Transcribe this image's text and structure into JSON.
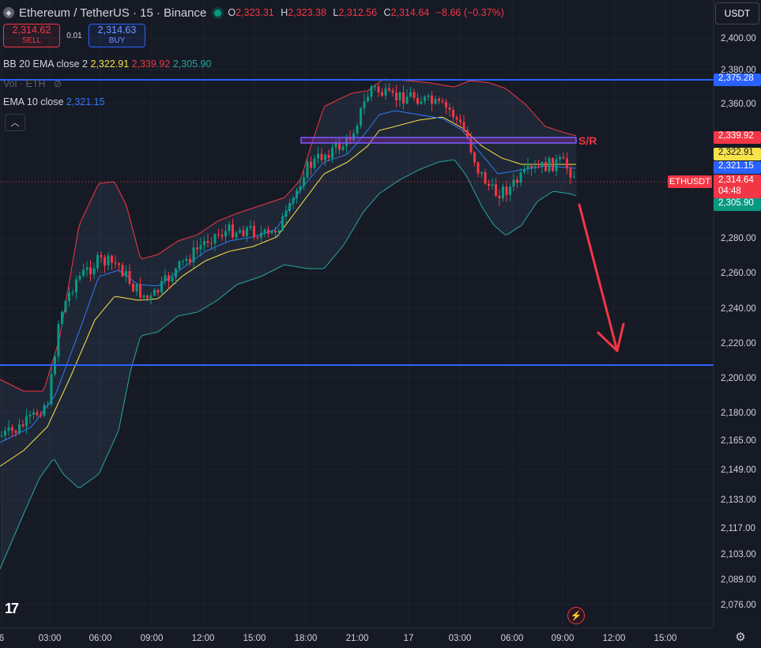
{
  "header": {
    "symbol_title": "Ethereum / TetherUS · 15 · Binance",
    "ohlc": {
      "o_label": "O",
      "o_value": "2,323.31",
      "h_label": "H",
      "h_value": "2,323.38",
      "l_label": "L",
      "l_value": "2,312.56",
      "c_label": "C",
      "c_value": "2,314.64",
      "change": "−8.66 (−0.37%)"
    },
    "currency": "USDT"
  },
  "trade": {
    "sell_price": "2,314.62",
    "sell_label": "SELL",
    "spread": "0.01",
    "buy_price": "2,314.63",
    "buy_label": "BUY"
  },
  "indicators": {
    "bb_label": "BB 20 EMA close 2",
    "bb_basis": "2,322.91",
    "bb_upper": "2,339.92",
    "bb_lower": "2,305.90",
    "vol_label": "Vol · ETH",
    "ema_label": "EMA 10 close",
    "ema_value": "2,321.15"
  },
  "price_axis": {
    "ticks": [
      "2,400.00",
      "2,380.00",
      "2,360.00",
      "2,280.00",
      "2,260.00",
      "2,240.00",
      "2,220.00",
      "2,200.00",
      "2,180.00",
      "2,165.00",
      "2,149.00",
      "2,133.00",
      "2,117.00",
      "2,103.00",
      "2,089.00",
      "2,076.00"
    ],
    "labels": {
      "line_top": "2,375.28",
      "bb_upper": "2,339.92",
      "bb_basis": "2,322.91",
      "ema": "2,321.15",
      "last": "2,314.64",
      "countdown": "04:48",
      "bb_lower": "2,305.90"
    },
    "symbol_tag": "ETHUSDT"
  },
  "time_axis": [
    "6",
    "03:00",
    "06:00",
    "09:00",
    "12:00",
    "15:00",
    "18:00",
    "21:00",
    "17",
    "03:00",
    "06:00",
    "09:00",
    "12:00",
    "15:00"
  ],
  "annotations": {
    "sr_label": "S/R"
  },
  "colors": {
    "background": "#161a25",
    "up": "#089981",
    "down": "#f23645",
    "ema": "#3179f5",
    "bb_basis": "#f7e24a",
    "bb_upper": "#f23645",
    "bb_lower": "#26a69a",
    "hline": "#2962ff",
    "sr_box": "#9c27b0",
    "arrow": "#f23645"
  },
  "chart_data": {
    "type": "candlestick",
    "symbol": "ETHUSDT",
    "timeframe": "15",
    "x": [
      "03:00",
      "06:00",
      "09:00",
      "12:00",
      "15:00",
      "18:00",
      "21:00",
      "17",
      "03:00",
      "06:00",
      "09:00"
    ],
    "close_approx": [
      2185,
      2262,
      2248,
      2270,
      2268,
      2318,
      2365,
      2358,
      2332,
      2318,
      2315
    ],
    "horizontal_lines": [
      2375.28,
      2207
    ],
    "sr_zone": [
      2335,
      2339
    ],
    "ylim": [
      2076,
      2400
    ],
    "xlabels_end": "15:00"
  }
}
